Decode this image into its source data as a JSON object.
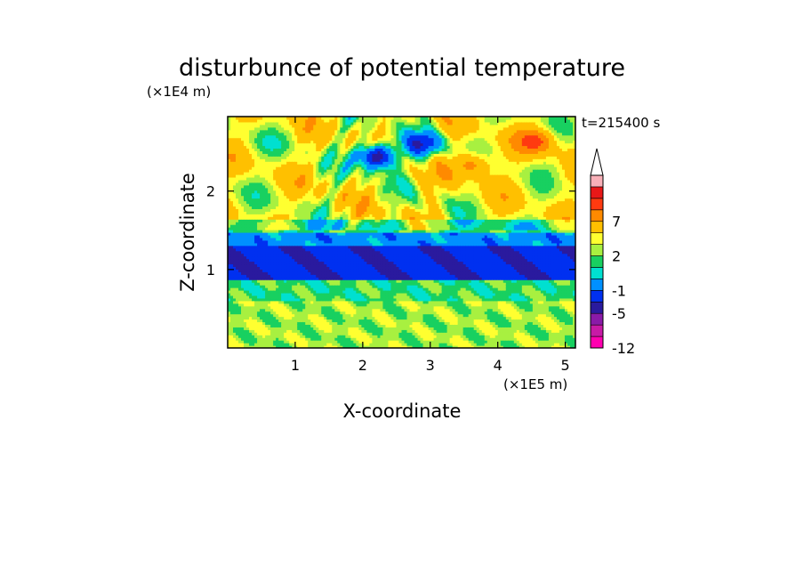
{
  "chart_data": {
    "type": "heatmap",
    "title": "disturbunce of potential temperature",
    "xlabel": "X-coordinate",
    "ylabel": "Z-coordinate",
    "x_unit": "(×1E5 m)",
    "y_unit": "(×1E4 m)",
    "time_label": "t=215400 s",
    "xlim": [
      0,
      5.15
    ],
    "ylim": [
      0,
      2.95
    ],
    "x_ticks": [
      "1",
      "2",
      "3",
      "4",
      "5"
    ],
    "x_tick_values": [
      1,
      2,
      3,
      4,
      5
    ],
    "y_ticks": [
      "1",
      "2"
    ],
    "y_tick_values": [
      1,
      2
    ],
    "colorbar": {
      "levels": [
        -12,
        -10,
        -8,
        -5,
        -3,
        -1,
        0,
        1,
        2,
        3,
        5,
        7,
        9,
        11
      ],
      "labels": [
        "-12",
        "-5",
        "-1",
        "2",
        "7"
      ],
      "label_values": [
        -12,
        -5,
        -1,
        2,
        7
      ],
      "colors": [
        "#ff00b0",
        "#c81aa6",
        "#8a1aa8",
        "#2a1a9e",
        "#0030f0",
        "#0090ff",
        "#00e0d0",
        "#18d060",
        "#a8f040",
        "#ffff30",
        "#ffc000",
        "#ff8a00",
        "#ff3a10",
        "#e81818",
        "#f8b0b8"
      ],
      "extend": "max"
    },
    "bands": [
      {
        "z_bottom": 0.0,
        "z_top": 0.62,
        "typical_value": 1.5
      },
      {
        "z_bottom": 0.62,
        "z_top": 0.86,
        "typical_value": 0.5
      },
      {
        "z_bottom": 0.86,
        "z_top": 1.32,
        "typical_value": -4
      },
      {
        "z_bottom": 1.32,
        "z_top": 1.48,
        "typical_value": -2
      },
      {
        "z_bottom": 1.48,
        "z_top": 1.65,
        "typical_value": 0.5
      },
      {
        "z_bottom": 1.65,
        "z_top": 2.95,
        "typical_value": 2.5
      }
    ],
    "features": [
      {
        "x": 2.2,
        "z": 2.45,
        "value": -8
      },
      {
        "x": 2.9,
        "z": 2.6,
        "value": -4
      },
      {
        "x": 3.65,
        "z": 2.35,
        "value": 7
      },
      {
        "x": 4.6,
        "z": 2.65,
        "value": 7
      },
      {
        "x": 0.6,
        "z": 2.6,
        "value": 2
      },
      {
        "x": 4.9,
        "z": 2.1,
        "value": 3
      }
    ]
  }
}
